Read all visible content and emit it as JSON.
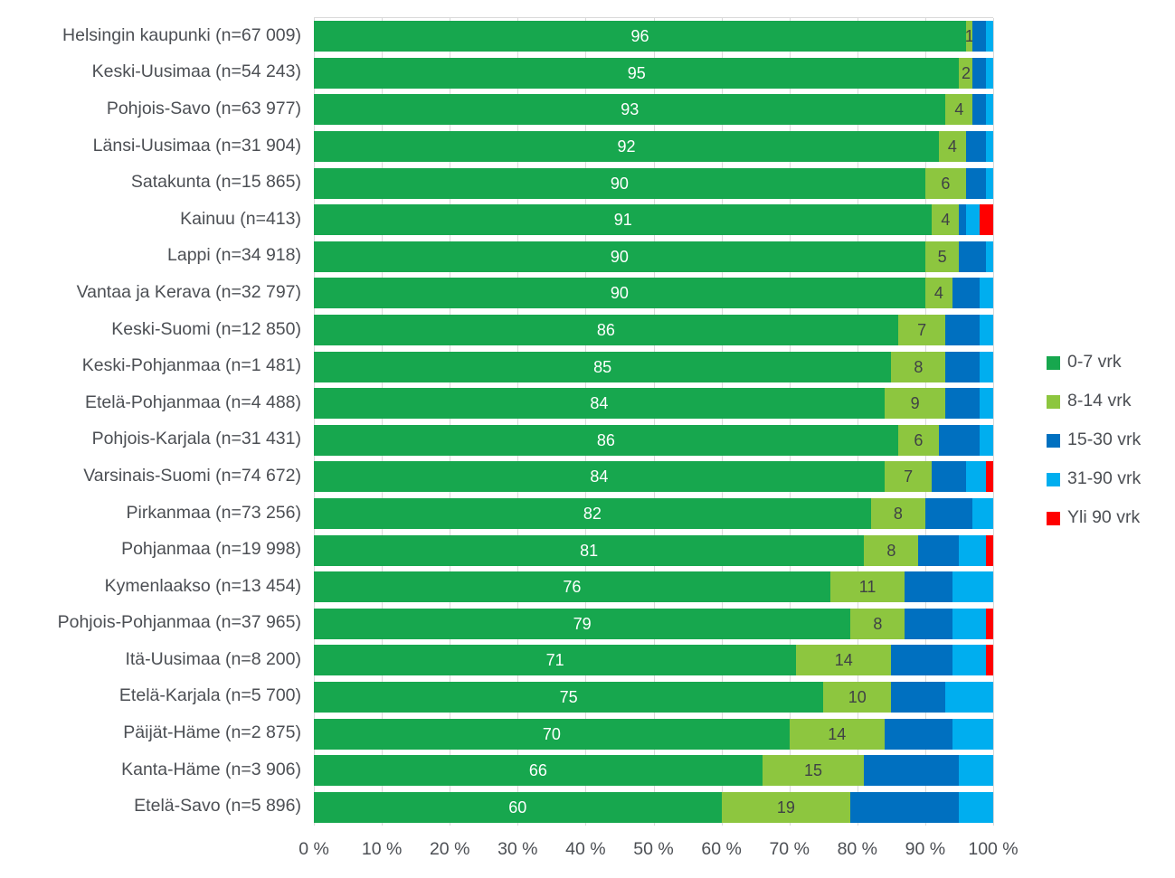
{
  "chart_data": {
    "type": "bar",
    "orientation": "horizontal",
    "stacked": true,
    "title": "",
    "xlabel": "",
    "ylabel": "",
    "xlim": [
      0,
      100
    ],
    "grid": "vertical-major-10pct",
    "legend_position": "right",
    "x_ticks": [
      "0 %",
      "10 %",
      "20 %",
      "30 %",
      "40 %",
      "50 %",
      "60 %",
      "70 %",
      "80 %",
      "90 %",
      "100 %"
    ],
    "categories": [
      "Helsingin kaupunki (n=67 009)",
      "Keski-Uusimaa (n=54 243)",
      "Pohjois-Savo (n=63 977)",
      "Länsi-Uusimaa (n=31 904)",
      "Satakunta (n=15 865)",
      "Kainuu (n=413)",
      "Lappi (n=34 918)",
      "Vantaa ja Kerava (n=32 797)",
      "Keski-Suomi (n=12 850)",
      "Keski-Pohjanmaa (n=1 481)",
      "Etelä-Pohjanmaa (n=4 488)",
      "Pohjois-Karjala (n=31 431)",
      "Varsinais-Suomi (n=74 672)",
      "Pirkanmaa (n=73 256)",
      "Pohjanmaa (n=19 998)",
      "Kymenlaakso (n=13 454)",
      "Pohjois-Pohjanmaa (n=37 965)",
      "Itä-Uusimaa (n=8 200)",
      "Etelä-Karjala (n=5 700)",
      "Päijät-Häme (n=2 875)",
      "Kanta-Häme (n=3 906)",
      "Etelä-Savo (n=5 896)"
    ],
    "series": [
      {
        "name": "0-7 vrk",
        "color": "#17a74e",
        "labeled": true,
        "label_color": "#ffffff",
        "values": [
          96,
          95,
          93,
          92,
          90,
          91,
          90,
          90,
          86,
          85,
          84,
          86,
          84,
          82,
          81,
          76,
          79,
          71,
          75,
          70,
          66,
          60
        ]
      },
      {
        "name": "8-14 vrk",
        "color": "#8dc63f",
        "labeled": true,
        "label_color": "#3f4245",
        "values": [
          1,
          2,
          4,
          4,
          6,
          4,
          5,
          4,
          7,
          8,
          9,
          6,
          7,
          8,
          8,
          11,
          8,
          14,
          10,
          14,
          15,
          19
        ]
      },
      {
        "name": "15-30 vrk",
        "color": "#0070c0",
        "labeled": false,
        "label_color": "#ffffff",
        "values": [
          2,
          2,
          2,
          3,
          3,
          1,
          4,
          4,
          5,
          5,
          5,
          6,
          5,
          7,
          6,
          7,
          7,
          9,
          8,
          10,
          14,
          16
        ]
      },
      {
        "name": "31-90 vrk",
        "color": "#00aeef",
        "labeled": false,
        "label_color": "#ffffff",
        "values": [
          1,
          1,
          1,
          1,
          1,
          2,
          1,
          2,
          2,
          2,
          2,
          2,
          3,
          3,
          4,
          6,
          5,
          5,
          7,
          6,
          5,
          5
        ]
      },
      {
        "name": "Yli 90 vrk",
        "color": "#ff0000",
        "labeled": false,
        "label_color": "#ffffff",
        "values": [
          0,
          0,
          0,
          0,
          0,
          2,
          0,
          0,
          0,
          0,
          0,
          0,
          1,
          0,
          1,
          0,
          1,
          1,
          0,
          0,
          0,
          0
        ]
      }
    ]
  },
  "styles": {
    "gridline_color": "#d9d9d9",
    "axis_text_color": "#4c4f54",
    "background": "#ffffff"
  }
}
